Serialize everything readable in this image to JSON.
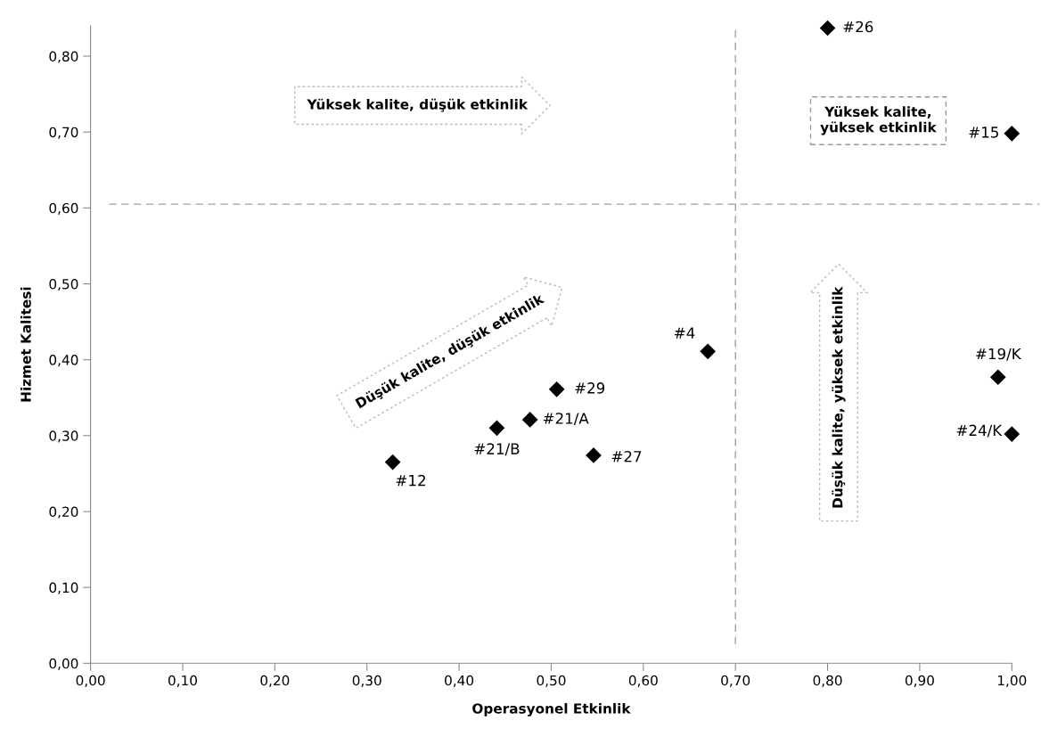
{
  "chart_data": {
    "type": "scatter",
    "xlabel": "Operasyonel Etkinlik",
    "ylabel": "Hizmet Kalitesi",
    "x": [
      0.8,
      1.0,
      0.67,
      0.985,
      1.0,
      0.506,
      0.477,
      0.546,
      0.328,
      0.441
    ],
    "values": [
      0.837,
      0.698,
      0.411,
      0.377,
      0.302,
      0.361,
      0.321,
      0.274,
      0.265,
      0.31
    ],
    "color": "#000000",
    "marker": "diamond",
    "grid": false,
    "xlim": [
      0,
      1.0
    ],
    "ylim": [
      0,
      0.84
    ],
    "xticks": [
      {
        "value": 0,
        "label": "0,00"
      },
      {
        "value": 0.1,
        "label": "0,10"
      },
      {
        "value": 0.2,
        "label": "0,20"
      },
      {
        "value": 0.3,
        "label": "0,30"
      },
      {
        "value": 0.4,
        "label": "0,40"
      },
      {
        "value": 0.5,
        "label": "0,50"
      },
      {
        "value": 0.6,
        "label": "0,60"
      },
      {
        "value": 0.7,
        "label": "0,70"
      },
      {
        "value": 0.8,
        "label": "0,80"
      },
      {
        "value": 0.9,
        "label": "0,90"
      },
      {
        "value": 1.0,
        "label": "1,00"
      }
    ],
    "yticks": [
      {
        "value": 0,
        "label": "0,00"
      },
      {
        "value": 0.1,
        "label": "0,10"
      },
      {
        "value": 0.2,
        "label": "0,20"
      },
      {
        "value": 0.3,
        "label": "0,30"
      },
      {
        "value": 0.4,
        "label": "0,40"
      },
      {
        "value": 0.5,
        "label": "0,50"
      },
      {
        "value": 0.6,
        "label": "0,60"
      },
      {
        "value": 0.7,
        "label": "0,70"
      },
      {
        "value": 0.8,
        "label": "0,80"
      }
    ],
    "ref_lines": [
      {
        "axis": "x",
        "value": 0.7,
        "color": "#a0a0a0",
        "line_style": "dashed"
      },
      {
        "axis": "y",
        "value": 0.605,
        "color": "#a0a0a0",
        "line_style": "dashed"
      }
    ],
    "annotations": [
      {
        "text": "#26",
        "x": 0.8,
        "y": 0.837
      },
      {
        "text": "#15",
        "x": 1.0,
        "y": 0.698
      },
      {
        "text": "#4",
        "x": 0.67,
        "y": 0.411
      },
      {
        "text": "#19/K",
        "x": 0.985,
        "y": 0.377
      },
      {
        "text": "#24/K",
        "x": 1.0,
        "y": 0.302
      },
      {
        "text": "#29",
        "x": 0.506,
        "y": 0.361
      },
      {
        "text": "#21/A",
        "x": 0.477,
        "y": 0.321
      },
      {
        "text": "#27",
        "x": 0.546,
        "y": 0.274
      },
      {
        "text": "#12",
        "x": 0.328,
        "y": 0.265
      },
      {
        "text": "#21/B",
        "x": 0.441,
        "y": 0.31
      },
      "Yüksek kalite, düşük etkinlik",
      "Yüksek kalite,\nyüksek etkinlik",
      "Düşük kalite, düşük etkinlik",
      "Düşük kalite, yüksek etkinlik"
    ]
  }
}
